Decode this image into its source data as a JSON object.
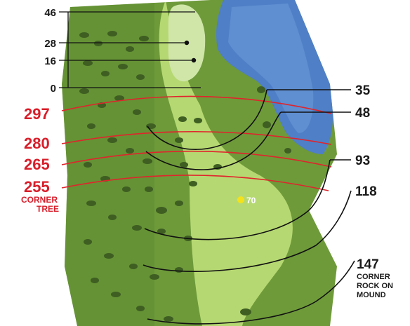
{
  "colors": {
    "rough": "#6e9a3a",
    "fairway": "#b6d872",
    "green": "#cfe6a8",
    "water": "#4f7fc6",
    "arc_red": "#e0242c",
    "arc_black": "#111111",
    "marker_yellow": "#f3e21c"
  },
  "green_yardages": [
    {
      "label": "46"
    },
    {
      "label": "28"
    },
    {
      "label": "16"
    },
    {
      "label": "0"
    }
  ],
  "left_red": [
    {
      "label": "297"
    },
    {
      "label": "280"
    },
    {
      "label": "265"
    },
    {
      "label": "255",
      "note_lines": [
        "CORNER",
        "TREE"
      ]
    }
  ],
  "right_black": [
    {
      "label": "35"
    },
    {
      "label": "48"
    },
    {
      "label": "93"
    },
    {
      "label": "118"
    },
    {
      "label": "147",
      "note_lines": [
        "CORNER",
        "ROCK ON",
        "MOUND"
      ]
    }
  ],
  "marker": {
    "label": "70"
  }
}
